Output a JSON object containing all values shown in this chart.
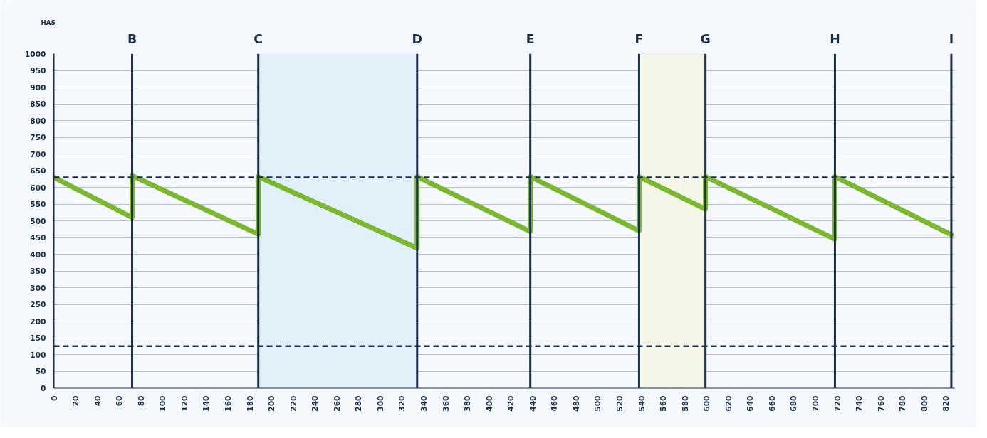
{
  "chart_data": {
    "type": "line",
    "ylabel": "HAS",
    "x": [
      0,
      72,
      72,
      188,
      188,
      334,
      334,
      438,
      438,
      538,
      538,
      599,
      599,
      718,
      718,
      825
    ],
    "series": [
      {
        "color": "#7cb82f",
        "values": [
          630,
          510,
          635,
          460,
          632,
          418,
          632,
          468,
          632,
          470,
          632,
          535,
          632,
          445,
          632,
          458
        ]
      }
    ],
    "xlim": [
      0,
      828
    ],
    "xticks": [
      0,
      20,
      40,
      60,
      80,
      100,
      120,
      140,
      160,
      180,
      200,
      220,
      240,
      260,
      280,
      300,
      320,
      340,
      360,
      380,
      400,
      420,
      440,
      460,
      480,
      500,
      520,
      540,
      560,
      580,
      600,
      620,
      640,
      660,
      680,
      700,
      720,
      740,
      760,
      780,
      800,
      820
    ],
    "ylim": [
      0,
      1000
    ],
    "yticks": [
      0,
      50,
      100,
      150,
      200,
      250,
      300,
      350,
      400,
      450,
      500,
      550,
      600,
      650,
      700,
      750,
      800,
      850,
      900,
      950,
      1000
    ],
    "grid": "y",
    "marker": "none",
    "line_style": "solid",
    "ref_lines": [
      {
        "axis": "y",
        "value": 630,
        "line_style": "dashed",
        "color": "#1b3047"
      },
      {
        "axis": "y",
        "value": 125,
        "line_style": "dashed",
        "color": "#1b3047"
      },
      {
        "axis": "x",
        "value": 72,
        "label": "B",
        "color": "#1b3047"
      },
      {
        "axis": "x",
        "value": 188,
        "label": "C",
        "color": "#1b3047"
      },
      {
        "axis": "x",
        "value": 334,
        "label": "D",
        "color": "#1b3047"
      },
      {
        "axis": "x",
        "value": 438,
        "label": "E",
        "color": "#1b3047"
      },
      {
        "axis": "x",
        "value": 538,
        "label": "F",
        "color": "#1b3047"
      },
      {
        "axis": "x",
        "value": 599,
        "label": "G",
        "color": "#1b3047"
      },
      {
        "axis": "x",
        "value": 718,
        "label": "H",
        "color": "#1b3047"
      },
      {
        "axis": "x",
        "value": 825,
        "label": "I",
        "color": "#1b3047"
      }
    ],
    "bands": [
      {
        "axis": "x",
        "from": 188,
        "to": 334,
        "color": "#e2f0fa"
      },
      {
        "axis": "x",
        "from": 538,
        "to": 599,
        "color": "#f4f7e8"
      }
    ]
  }
}
